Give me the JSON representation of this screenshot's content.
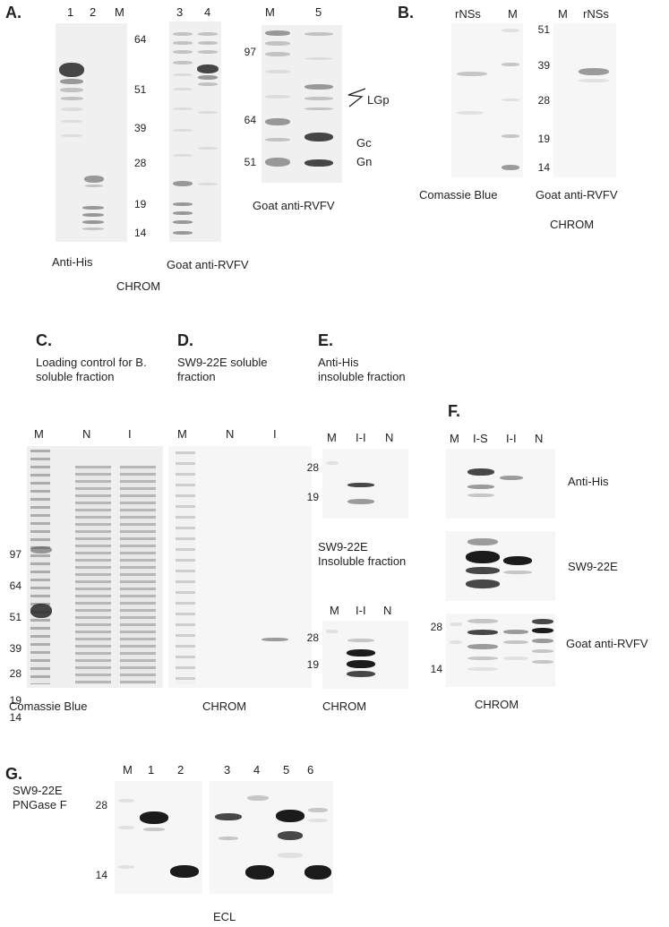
{
  "panel_a": {
    "letter": "A.",
    "lane_numbers_left": [
      "1",
      "2",
      "M"
    ],
    "lane_numbers_mid": [
      "3",
      "4"
    ],
    "lane_numbers_right": [
      "M",
      "5"
    ],
    "markers_left": [
      "64",
      "51",
      "39",
      "28",
      "19",
      "14"
    ],
    "markers_right": [
      "97",
      "64",
      "51"
    ],
    "band_labels": {
      "lgp": "LGp",
      "gc": "Gc",
      "gn": "Gn"
    },
    "caption_left": "Anti-His",
    "caption_mid": "Goat anti-RVFV",
    "caption_right": "Goat anti-RVFV",
    "caption_bottom": "CHROM"
  },
  "panel_b": {
    "letter": "B.",
    "lanes_left": [
      "rNSs",
      "M"
    ],
    "lanes_right": [
      "M",
      "rNSs"
    ],
    "markers": [
      "51",
      "39",
      "28",
      "19",
      "14"
    ],
    "caption_left": "Comassie Blue",
    "caption_right": "Goat anti-RVFV",
    "caption_bottom": "CHROM"
  },
  "panel_c": {
    "letter": "C.",
    "title": "Loading control for B. soluble fraction",
    "lanes": [
      "M",
      "N",
      "I"
    ],
    "markers": [
      "97",
      "64",
      "51",
      "39",
      "28",
      "19",
      "14"
    ],
    "caption": "Comassie Blue"
  },
  "panel_d": {
    "letter": "D.",
    "title": "SW9-22E soluble fraction",
    "lanes": [
      "M",
      "N",
      "I"
    ],
    "caption": "CHROM"
  },
  "panel_e": {
    "letter": "E.",
    "title": "Anti-His insoluble fraction",
    "lanes_top": [
      "M",
      "I-I",
      "N"
    ],
    "markers_top": [
      "28",
      "19"
    ],
    "title2": "SW9-22E Insoluble fraction",
    "lanes_bottom": [
      "M",
      "I-I",
      "N"
    ],
    "markers_bottom": [
      "28",
      "19"
    ],
    "caption": "CHROM"
  },
  "panel_f": {
    "letter": "F.",
    "lanes": [
      "M",
      "I-S",
      "I-I",
      "N"
    ],
    "row_labels": [
      "Anti-His",
      "SW9-22E",
      "Goat anti-RVFV"
    ],
    "markers": [
      "28",
      "14"
    ],
    "caption": "CHROM"
  },
  "panel_g": {
    "letter": "G.",
    "side_label": "SW9-22E PNGase F",
    "lanes_left": [
      "M",
      "1",
      "2"
    ],
    "lanes_right": [
      "3",
      "4",
      "5",
      "6"
    ],
    "markers": [
      "28",
      "14"
    ],
    "caption": "ECL"
  }
}
